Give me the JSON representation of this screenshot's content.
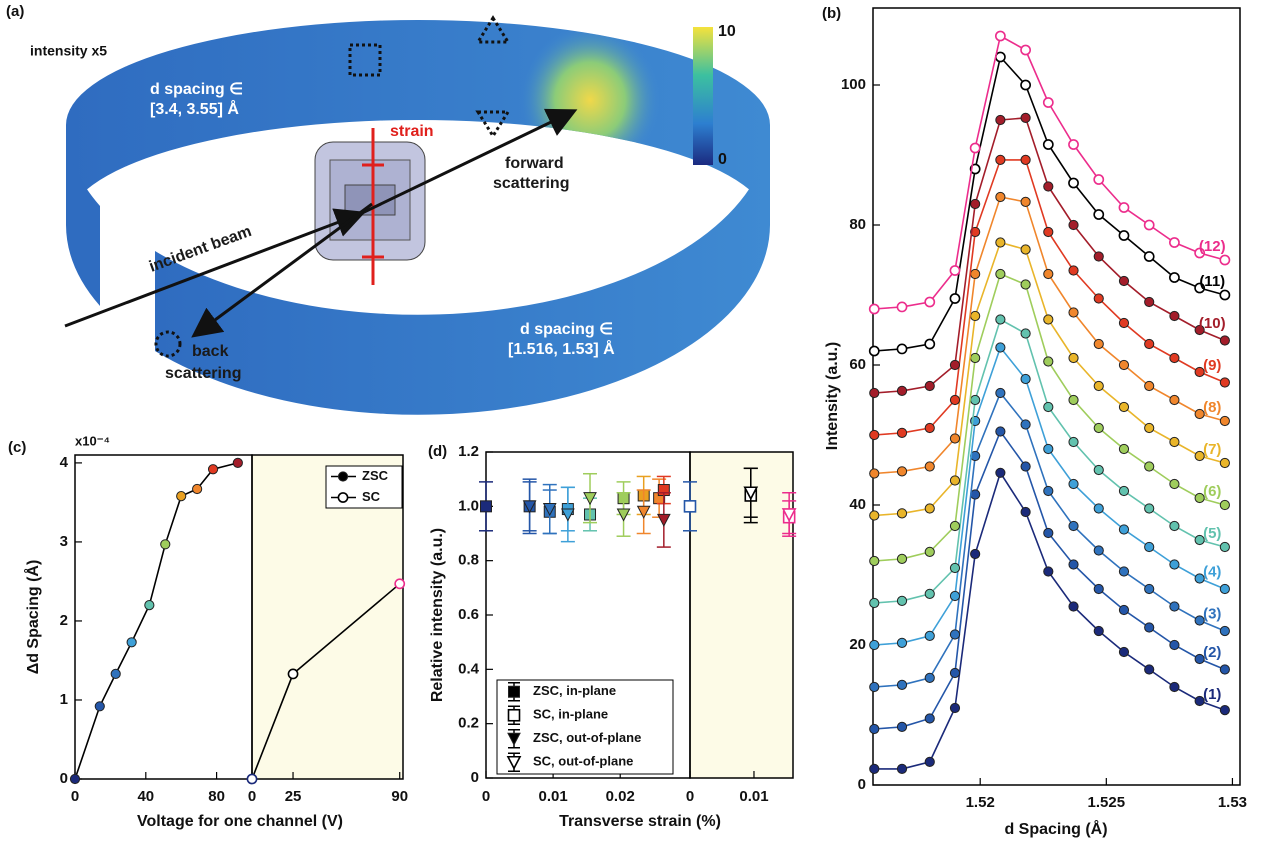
{
  "panel_a": {
    "label": "(a)",
    "intensity_note": "intensity x5",
    "back_range": [
      "d spacing ∈",
      "[3.4, 3.55] Å"
    ],
    "strain": "strain",
    "forward": [
      "forward",
      "scattering"
    ],
    "incident": "incident beam",
    "back": [
      "back",
      "scattering"
    ],
    "front_range": [
      "d spacing ∈",
      "[1.516, 1.53] Å"
    ],
    "colorbar": {
      "ticks": [
        0,
        10
      ]
    }
  },
  "chart_data": [
    {
      "type": "line",
      "panel_label": "(b)",
      "x_label": "d Spacing (Å)",
      "y_label": "Intensity (a.u.)",
      "xlim": [
        1.51575,
        1.5303
      ],
      "xticks": [
        1.52,
        1.525,
        1.53
      ],
      "ylim": [
        0,
        111
      ],
      "yticks": [
        0,
        20,
        40,
        60,
        80,
        100
      ],
      "x": [
        1.5158,
        1.5169,
        1.518,
        1.519,
        1.5198,
        1.5208,
        1.5218,
        1.5227,
        1.5237,
        1.5247,
        1.5257,
        1.5267,
        1.5277,
        1.5287,
        1.5297
      ],
      "series": [
        {
          "name": "(1)",
          "color": "#1b2a7a",
          "filled": true,
          "values": [
            2.3,
            2.3,
            3.3,
            11,
            33,
            44.6,
            39,
            30.5,
            25.5,
            22,
            19,
            16.5,
            14,
            12,
            10.7
          ]
        },
        {
          "name": "(2)",
          "color": "#2456a8",
          "filled": true,
          "values": [
            8,
            8.3,
            9.5,
            16,
            41.5,
            50.5,
            45.5,
            36,
            31.5,
            28,
            25,
            22.5,
            20,
            18,
            16.5
          ]
        },
        {
          "name": "(3)",
          "color": "#2f72bd",
          "filled": true,
          "values": [
            14,
            14.3,
            15.3,
            21.5,
            47,
            56,
            51.5,
            42,
            37,
            33.5,
            30.5,
            28,
            25.5,
            23.5,
            22
          ]
        },
        {
          "name": "(4)",
          "color": "#3ea0d8",
          "filled": true,
          "values": [
            20,
            20.3,
            21.3,
            27,
            52,
            62.5,
            58,
            48,
            43,
            39.5,
            36.5,
            34,
            31.5,
            29.5,
            28
          ]
        },
        {
          "name": "(5)",
          "color": "#62c2ae",
          "filled": true,
          "values": [
            26,
            26.3,
            27.3,
            31,
            55,
            66.5,
            64.5,
            54,
            49,
            45,
            42,
            39.5,
            37,
            35,
            34
          ]
        },
        {
          "name": "(6)",
          "color": "#9fcd5c",
          "filled": true,
          "values": [
            32,
            32.3,
            33.3,
            37,
            61,
            73,
            71.5,
            60.5,
            55,
            51,
            48,
            45.5,
            43,
            41,
            40
          ]
        },
        {
          "name": "(7)",
          "color": "#e9b52a",
          "filled": true,
          "values": [
            38.5,
            38.8,
            39.5,
            43.5,
            67,
            77.5,
            76.5,
            66.5,
            61,
            57,
            54,
            51,
            49,
            47,
            46
          ]
        },
        {
          "name": "(8)",
          "color": "#f0862c",
          "filled": true,
          "values": [
            44.5,
            44.8,
            45.5,
            49.5,
            73,
            84,
            83.3,
            73,
            67.5,
            63,
            60,
            57,
            55,
            53,
            52
          ]
        },
        {
          "name": "(9)",
          "color": "#e03a22",
          "filled": true,
          "values": [
            50,
            50.3,
            51,
            55,
            79,
            89.3,
            89.3,
            79,
            73.5,
            69.5,
            66,
            63,
            61,
            59,
            57.5
          ]
        },
        {
          "name": "(10)",
          "color": "#a31d2a",
          "filled": true,
          "values": [
            56,
            56.3,
            57,
            60,
            83,
            95,
            95.3,
            85.5,
            80,
            75.5,
            72,
            69,
            67,
            65,
            63.5
          ]
        },
        {
          "name": "(11)",
          "color": "#000000",
          "filled": false,
          "values": [
            62,
            62.3,
            63,
            69.5,
            88,
            104,
            100,
            91.5,
            86,
            81.5,
            78.5,
            75.5,
            72.5,
            71,
            70
          ]
        },
        {
          "name": "(12)",
          "color": "#ec2d8c",
          "filled": false,
          "values": [
            68,
            68.3,
            69,
            73.5,
            91,
            107,
            105,
            97.5,
            91.5,
            86.5,
            82.5,
            80,
            77.5,
            76,
            75
          ]
        }
      ]
    },
    {
      "type": "line",
      "panel_label": "(c)",
      "x_label": "Voltage for one channel (V)",
      "y_label": "Δd Spacing (Å)",
      "y_scale_label": "x10⁻⁴",
      "ylim": [
        0,
        4.1
      ],
      "yticks": [
        0,
        1,
        2,
        3,
        4
      ],
      "legend": true,
      "panels": [
        {
          "xlim": [
            0,
            100
          ],
          "xticks": [
            0,
            40,
            80
          ]
        },
        {
          "xlim": [
            0,
            92
          ],
          "xticks": [
            0,
            25,
            90
          ],
          "background": "#fdfbe7"
        }
      ],
      "series": [
        {
          "name": "ZSC",
          "panel": 0,
          "color": "#000000",
          "filled": true,
          "x": [
            0,
            14,
            23,
            32,
            42,
            51,
            60,
            69,
            78,
            92
          ],
          "values": [
            0,
            0.92,
            1.33,
            1.73,
            2.2,
            2.97,
            3.58,
            3.67,
            3.92,
            4.0
          ],
          "point_colors": [
            "#1b2a7a",
            "#2456a8",
            "#2f72bd",
            "#3ea0d8",
            "#62c2ae",
            "#9fcd5c",
            "#e9a020",
            "#f0862c",
            "#e03a22",
            "#a31d2a"
          ]
        },
        {
          "name": "SC",
          "panel": 1,
          "color": "#000000",
          "filled": false,
          "x": [
            0,
            25,
            90
          ],
          "values": [
            0,
            1.33,
            2.47
          ],
          "point_colors": [
            "#1b2a7a",
            "#000000",
            "#ec2d8c"
          ]
        }
      ]
    },
    {
      "type": "scatter",
      "panel_label": "(d)",
      "x_label": "Transverse strain (%)",
      "y_label": "Relative intensity (a.u.)",
      "ylim": [
        0,
        1.2
      ],
      "yticks": [
        0,
        0.2,
        0.4,
        0.6,
        0.8,
        {
          "value": 1,
          "label": "1.0"
        },
        1.2
      ],
      "legend": true,
      "panels": [
        {
          "xlim": [
            0,
            0.0304
          ],
          "xticks": [
            0,
            0.01,
            0.02
          ]
        },
        {
          "xlim": [
            0,
            0.0161
          ],
          "xticks": [
            0,
            0.01
          ],
          "background": "#fdfbe7"
        }
      ],
      "series": [
        {
          "name": "ZSC, in-plane",
          "panel": 0,
          "marker": "square",
          "filled": true,
          "color": "#000000",
          "x": [
            0,
            0.0065,
            0.0095,
            0.0122,
            0.0155,
            0.0205,
            0.0235,
            0.0258,
            0.0265
          ],
          "values": [
            1.0,
            1.0,
            0.98,
            0.99,
            0.97,
            1.03,
            1.04,
            1.03,
            1.06
          ],
          "errors": [
            0.09,
            0.1,
            0.08,
            0.08,
            0.06,
            0.06,
            0.07,
            0.07,
            0.05
          ],
          "point_colors": [
            "#1b2a7a",
            "#2456a8",
            "#2f72bd",
            "#3ea0d8",
            "#62c2ae",
            "#9fcd5c",
            "#e9a020",
            "#f0862c",
            "#e03a22"
          ]
        },
        {
          "name": "SC, in-plane",
          "panel": 1,
          "marker": "square",
          "filled": false,
          "color": "#000000",
          "x": [
            0,
            0.0095,
            0.0155
          ],
          "values": [
            1.0,
            1.04,
            0.96
          ],
          "errors": [
            0.09,
            0.1,
            0.06
          ],
          "point_colors": [
            "#2456a8",
            "#000000",
            "#ec2d8c"
          ]
        },
        {
          "name": "ZSC, out-of-plane",
          "panel": 0,
          "marker": "triangle",
          "filled": true,
          "color": "#000000",
          "x": [
            0.0065,
            0.0095,
            0.0122,
            0.0155,
            0.0205,
            0.0235,
            0.0265
          ],
          "values": [
            1.0,
            0.99,
            0.97,
            1.03,
            0.97,
            0.98,
            0.95
          ],
          "errors": [
            0.09,
            0.09,
            0.1,
            0.09,
            0.08,
            0.08,
            0.1
          ],
          "point_colors": [
            "#2456a8",
            "#2f72bd",
            "#3ea0d8",
            "#9fcd5c",
            "#9fcd5c",
            "#f0862c",
            "#a31d2a"
          ]
        },
        {
          "name": "SC, out-of-plane",
          "panel": 1,
          "marker": "triangle",
          "filled": false,
          "color": "#000000",
          "x": [
            0.0095,
            0.0155
          ],
          "values": [
            1.05,
            0.97
          ],
          "errors": [
            0.09,
            0.08
          ],
          "point_colors": [
            "#000000",
            "#ec2d8c"
          ]
        }
      ]
    }
  ]
}
